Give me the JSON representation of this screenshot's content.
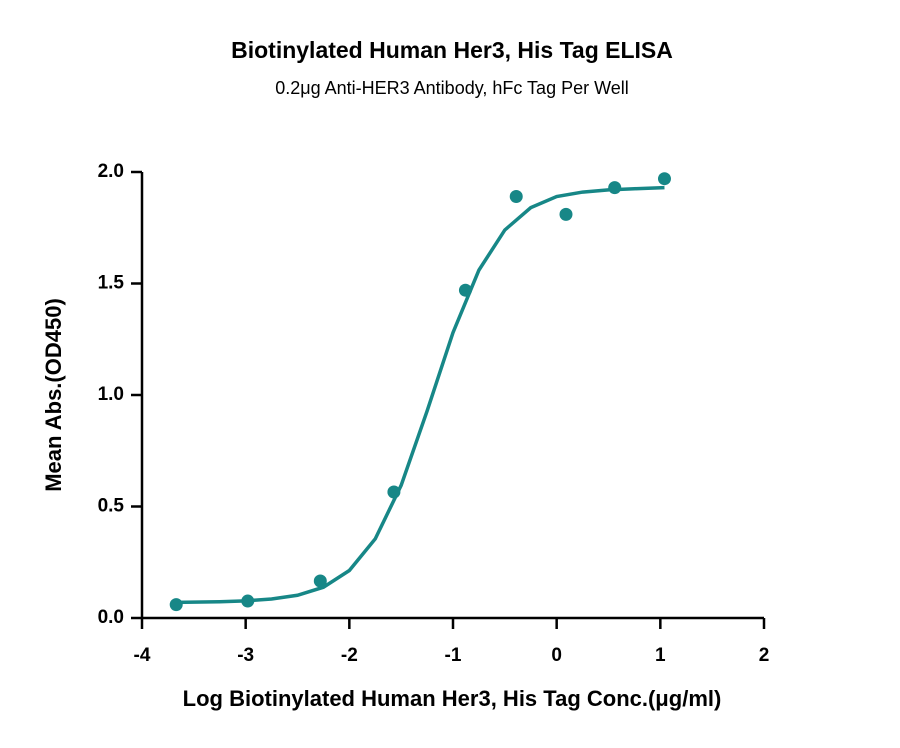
{
  "chart_data": {
    "type": "scatter",
    "title": "Biotinylated Human Her3, His Tag ELISA",
    "subtitle": "0.2μg Anti-HER3 Antibody, hFc Tag Per Well",
    "x_label": "Log Biotinylated Human Her3, His Tag Conc.(μg/ml)",
    "y_label": "Mean Abs.(OD450)",
    "color": "#178787",
    "x": [
      -3.67,
      -2.98,
      -2.28,
      -1.57,
      -0.88,
      -0.39,
      0.09,
      0.56,
      1.04
    ],
    "values": [
      0.06,
      0.076,
      0.166,
      0.565,
      1.47,
      1.89,
      1.81,
      1.93,
      1.97
    ],
    "fit": {
      "x": [
        -3.67,
        -3.25,
        -3.0,
        -2.75,
        -2.5,
        -2.25,
        -2.0,
        -1.75,
        -1.5,
        -1.25,
        -1.0,
        -0.75,
        -0.5,
        -0.25,
        0,
        0.25,
        0.5,
        0.75,
        1.04
      ],
      "values": [
        0.07,
        0.073,
        0.077,
        0.085,
        0.102,
        0.138,
        0.213,
        0.355,
        0.595,
        0.928,
        1.28,
        1.56,
        1.74,
        1.84,
        1.89,
        1.91,
        1.92,
        1.925,
        1.93
      ]
    },
    "xlim": [
      -4,
      2
    ],
    "xticks": [
      -4,
      -3,
      -2,
      -1,
      0,
      1,
      2
    ],
    "ylim": [
      0,
      2
    ],
    "yticks": [
      {
        "value": 0,
        "label": "0.0"
      },
      0.5,
      {
        "value": 1,
        "label": "1.0"
      },
      1.5,
      {
        "value": 2,
        "label": "2.0"
      }
    ]
  }
}
